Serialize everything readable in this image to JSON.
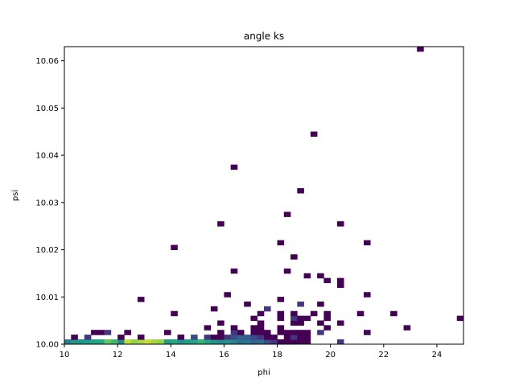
{
  "chart_data": {
    "type": "heatmap",
    "title": "angle ks",
    "xlabel": "phi",
    "ylabel": "psi",
    "xlim": [
      10,
      25
    ],
    "ylim": [
      10.0,
      10.063
    ],
    "xticks": [
      10,
      12,
      14,
      16,
      18,
      20,
      22,
      24
    ],
    "yticks": [
      10.0,
      10.01,
      10.02,
      10.03,
      10.04,
      10.05,
      10.06
    ],
    "xtick_labels": [
      "10",
      "12",
      "14",
      "16",
      "18",
      "20",
      "22",
      "24"
    ],
    "ytick_labels": [
      "10.00",
      "10.01",
      "10.02",
      "10.03",
      "10.04",
      "10.05",
      "10.06"
    ],
    "bins": {
      "x": 60,
      "y": 60
    },
    "colormap": "viridis",
    "grid": false,
    "cells": [
      [
        10.125,
        10.0005,
        0.55
      ],
      [
        10.375,
        10.0005,
        0.65
      ],
      [
        10.625,
        10.0005,
        0.65
      ],
      [
        10.875,
        10.0005,
        0.7
      ],
      [
        11.125,
        10.0005,
        0.72
      ],
      [
        11.375,
        10.0005,
        0.75
      ],
      [
        11.625,
        10.0005,
        0.85
      ],
      [
        11.875,
        10.0005,
        0.8
      ],
      [
        12.125,
        10.0005,
        0.6
      ],
      [
        12.375,
        10.0005,
        0.95
      ],
      [
        12.625,
        10.0005,
        0.9
      ],
      [
        12.875,
        10.0005,
        0.92
      ],
      [
        13.125,
        10.0005,
        0.95
      ],
      [
        13.375,
        10.0005,
        0.92
      ],
      [
        13.625,
        10.0005,
        0.9
      ],
      [
        13.875,
        10.0005,
        0.7
      ],
      [
        14.125,
        10.0005,
        0.75
      ],
      [
        14.375,
        10.0005,
        0.65
      ],
      [
        14.625,
        10.0005,
        0.7
      ],
      [
        14.875,
        10.0005,
        0.72
      ],
      [
        15.125,
        10.0005,
        0.78
      ],
      [
        15.375,
        10.0005,
        0.75
      ],
      [
        15.625,
        10.0005,
        0.65
      ],
      [
        15.875,
        10.0005,
        0.6
      ],
      [
        16.125,
        10.0005,
        0.65
      ],
      [
        16.375,
        10.0005,
        0.55
      ],
      [
        16.625,
        10.0005,
        0.45
      ],
      [
        16.875,
        10.0005,
        0.5
      ],
      [
        17.125,
        10.0005,
        0.4
      ],
      [
        17.375,
        10.0005,
        0.45
      ],
      [
        17.625,
        10.0005,
        0.3
      ],
      [
        17.875,
        10.0005,
        0.2
      ],
      [
        18.125,
        10.0005,
        0.0
      ],
      [
        18.375,
        10.0005,
        0.0
      ],
      [
        18.625,
        10.0005,
        0.0
      ],
      [
        18.875,
        10.0005,
        0.0
      ],
      [
        19.125,
        10.0005,
        0.0
      ],
      [
        20.375,
        10.0005,
        0.2
      ],
      [
        10.375,
        10.0015,
        0.0
      ],
      [
        10.875,
        10.0015,
        0.2
      ],
      [
        12.125,
        10.0015,
        0.0
      ],
      [
        12.875,
        10.0015,
        0.0
      ],
      [
        14.375,
        10.0015,
        0.0
      ],
      [
        14.875,
        10.0015,
        0.3
      ],
      [
        15.375,
        10.0015,
        0.2
      ],
      [
        15.625,
        10.0015,
        0.0
      ],
      [
        15.875,
        10.0015,
        0.0
      ],
      [
        16.125,
        10.0015,
        0.2
      ],
      [
        16.375,
        10.0015,
        0.3
      ],
      [
        16.625,
        10.0015,
        0.4
      ],
      [
        16.875,
        10.0015,
        0.35
      ],
      [
        17.125,
        10.0015,
        0.3
      ],
      [
        17.375,
        10.0015,
        0.2
      ],
      [
        17.625,
        10.0015,
        0.0
      ],
      [
        17.875,
        10.0015,
        0.0
      ],
      [
        18.375,
        10.0015,
        0.0
      ],
      [
        18.625,
        10.0015,
        0.2
      ],
      [
        18.875,
        10.0015,
        0.0
      ],
      [
        19.125,
        10.0015,
        0.0
      ],
      [
        11.125,
        10.0025,
        0.0
      ],
      [
        11.375,
        10.0025,
        0.0
      ],
      [
        11.625,
        10.0025,
        0.2
      ],
      [
        12.375,
        10.0025,
        0.0
      ],
      [
        13.875,
        10.0025,
        0.0
      ],
      [
        15.875,
        10.0025,
        0.0
      ],
      [
        16.375,
        10.0025,
        0.2
      ],
      [
        16.625,
        10.0025,
        0.0
      ],
      [
        17.125,
        10.0025,
        0.0
      ],
      [
        17.375,
        10.0025,
        0.0
      ],
      [
        17.625,
        10.0025,
        0.0
      ],
      [
        18.125,
        10.0025,
        0.0
      ],
      [
        18.375,
        10.0025,
        0.0
      ],
      [
        18.625,
        10.0025,
        0.0
      ],
      [
        18.875,
        10.0025,
        0.0
      ],
      [
        19.125,
        10.0025,
        0.0
      ],
      [
        19.625,
        10.0025,
        0.2
      ],
      [
        21.375,
        10.0025,
        0.0
      ],
      [
        15.375,
        10.0035,
        0.0
      ],
      [
        16.375,
        10.0035,
        0.0
      ],
      [
        17.125,
        10.0035,
        0.0
      ],
      [
        17.375,
        10.0035,
        0.0
      ],
      [
        18.125,
        10.0035,
        0.0
      ],
      [
        19.875,
        10.0035,
        0.0
      ],
      [
        22.875,
        10.0035,
        0.0
      ],
      [
        15.875,
        10.0045,
        0.0
      ],
      [
        17.375,
        10.0045,
        0.0
      ],
      [
        18.625,
        10.0045,
        0.0
      ],
      [
        18.875,
        10.0045,
        0.0
      ],
      [
        19.625,
        10.0045,
        0.0
      ],
      [
        20.375,
        10.0045,
        0.0
      ],
      [
        17.125,
        10.0055,
        0.0
      ],
      [
        18.125,
        10.0055,
        0.0
      ],
      [
        18.625,
        10.0055,
        0.2
      ],
      [
        18.875,
        10.0055,
        0.0
      ],
      [
        19.125,
        10.0055,
        0.0
      ],
      [
        19.875,
        10.0055,
        0.0
      ],
      [
        24.875,
        10.0055,
        0.0
      ],
      [
        14.125,
        10.0065,
        0.0
      ],
      [
        17.375,
        10.0065,
        0.0
      ],
      [
        18.125,
        10.0065,
        0.0
      ],
      [
        18.625,
        10.0065,
        0.0
      ],
      [
        19.375,
        10.0065,
        0.0
      ],
      [
        19.875,
        10.0065,
        0.0
      ],
      [
        21.125,
        10.0065,
        0.0
      ],
      [
        22.375,
        10.0065,
        0.0
      ],
      [
        15.625,
        10.0075,
        0.0
      ],
      [
        17.625,
        10.0075,
        0.2
      ],
      [
        16.875,
        10.0085,
        0.0
      ],
      [
        18.875,
        10.0085,
        0.2
      ],
      [
        19.625,
        10.0085,
        0.0
      ],
      [
        12.875,
        10.0095,
        0.0
      ],
      [
        18.125,
        10.0095,
        0.0
      ],
      [
        16.125,
        10.0105,
        0.0
      ],
      [
        21.375,
        10.0105,
        0.0
      ],
      [
        20.375,
        10.0125,
        0.0
      ],
      [
        19.875,
        10.0135,
        0.0
      ],
      [
        19.125,
        10.0145,
        0.0
      ],
      [
        20.375,
        10.0135,
        0.0
      ],
      [
        19.625,
        10.0145,
        0.0
      ],
      [
        16.375,
        10.0155,
        0.0
      ],
      [
        18.375,
        10.0155,
        0.0
      ],
      [
        18.625,
        10.0185,
        0.0
      ],
      [
        14.125,
        10.0205,
        0.0
      ],
      [
        18.125,
        10.0215,
        0.0
      ],
      [
        21.375,
        10.0215,
        0.0
      ],
      [
        15.875,
        10.0255,
        0.0
      ],
      [
        20.375,
        10.0255,
        0.0
      ],
      [
        18.375,
        10.0275,
        0.0
      ],
      [
        18.875,
        10.0325,
        0.0
      ],
      [
        16.375,
        10.0375,
        0.0
      ],
      [
        19.375,
        10.0445,
        0.0
      ],
      [
        23.375,
        10.0625,
        0.0
      ]
    ]
  }
}
